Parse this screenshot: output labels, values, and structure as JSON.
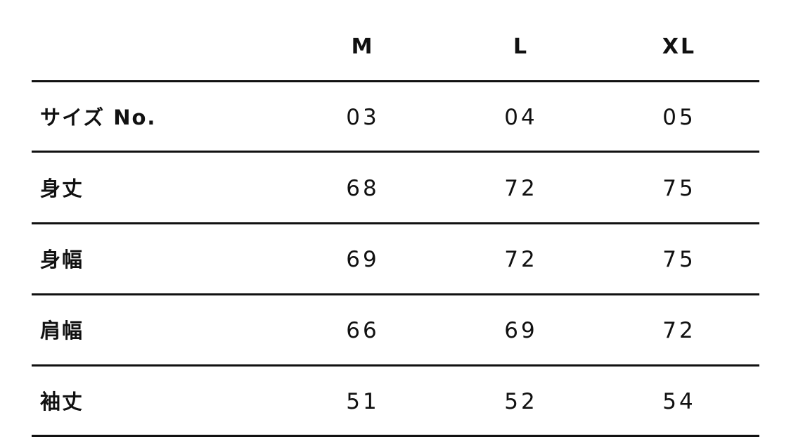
{
  "columns": [
    "M",
    "L",
    "XL"
  ],
  "rows": [
    {
      "label": "サイズ No.",
      "values": [
        "03",
        "04",
        "05"
      ]
    },
    {
      "label": "身丈",
      "values": [
        "68",
        "72",
        "75"
      ]
    },
    {
      "label": "身幅",
      "values": [
        "69",
        "72",
        "75"
      ]
    },
    {
      "label": "肩幅",
      "values": [
        "66",
        "69",
        "72"
      ]
    },
    {
      "label": "袖丈",
      "values": [
        "51",
        "52",
        "54"
      ]
    }
  ]
}
